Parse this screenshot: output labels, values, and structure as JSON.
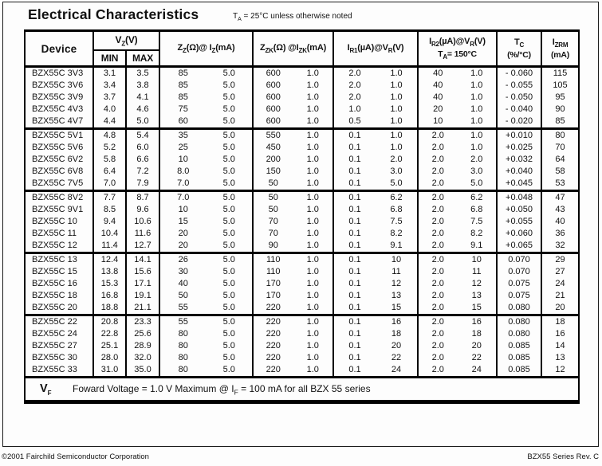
{
  "page": {
    "title": "Electrical Characteristics",
    "title_note": {
      "sym": "T",
      "sub": "A",
      "rest": " = 25°C unless otherwise noted"
    }
  },
  "table": {
    "headers": {
      "device": "Device",
      "vz": {
        "sym": "V",
        "sub": "Z",
        "rest": "(V)"
      },
      "min": "MIN",
      "max": "MAX",
      "zz": {
        "sym": "Z",
        "sub": "Z",
        "mid": "(Ω)@ I",
        "sub2": "Z",
        "rest": "(mA)"
      },
      "zzk": {
        "sym": "Z",
        "sub": "ZK",
        "mid": "(Ω) @I",
        "sub2": "ZK",
        "rest": "(mA)"
      },
      "ir1": {
        "sym": "I",
        "sub": "R1",
        "mid": "(µA)@V",
        "sub2": "R",
        "rest": "(V)"
      },
      "ir2": {
        "sym": "I",
        "sub": "R2",
        "mid": "(µA)@V",
        "sub2": "R",
        "rest": "(V)",
        "line2_sym": "T",
        "line2_sub": "A",
        "line2_rest": "= 150°C"
      },
      "tc": {
        "sym": "T",
        "sub": "C",
        "line2": "(%/°C)"
      },
      "izrm": {
        "sym": "I",
        "sub": "ZRM",
        "line2": "(mA)"
      }
    },
    "groups": [
      [
        {
          "device": "BZX55C 3V3",
          "vz_min": "3.1",
          "vz_max": "3.5",
          "zz": "85",
          "iz": "5.0",
          "zzk": "600",
          "izk": "1.0",
          "ir1": "2.0",
          "vr1": "1.0",
          "ir2": "40",
          "vr2": "1.0",
          "tc": "- 0.060",
          "izrm": "115"
        },
        {
          "device": "BZX55C 3V6",
          "vz_min": "3.4",
          "vz_max": "3.8",
          "zz": "85",
          "iz": "5.0",
          "zzk": "600",
          "izk": "1.0",
          "ir1": "2.0",
          "vr1": "1.0",
          "ir2": "40",
          "vr2": "1.0",
          "tc": "- 0.055",
          "izrm": "105"
        },
        {
          "device": "BZX55C 3V9",
          "vz_min": "3.7",
          "vz_max": "4.1",
          "zz": "85",
          "iz": "5.0",
          "zzk": "600",
          "izk": "1.0",
          "ir1": "2.0",
          "vr1": "1.0",
          "ir2": "40",
          "vr2": "1.0",
          "tc": "- 0.050",
          "izrm": "95"
        },
        {
          "device": "BZX55C 4V3",
          "vz_min": "4.0",
          "vz_max": "4.6",
          "zz": "75",
          "iz": "5.0",
          "zzk": "600",
          "izk": "1.0",
          "ir1": "1.0",
          "vr1": "1.0",
          "ir2": "20",
          "vr2": "1.0",
          "tc": "- 0.040",
          "izrm": "90"
        },
        {
          "device": "BZX55C 4V7",
          "vz_min": "4.4",
          "vz_max": "5.0",
          "zz": "60",
          "iz": "5.0",
          "zzk": "600",
          "izk": "1.0",
          "ir1": "0.5",
          "vr1": "1.0",
          "ir2": "10",
          "vr2": "1.0",
          "tc": "- 0.020",
          "izrm": "85"
        }
      ],
      [
        {
          "device": "BZX55C 5V1",
          "vz_min": "4.8",
          "vz_max": "5.4",
          "zz": "35",
          "iz": "5.0",
          "zzk": "550",
          "izk": "1.0",
          "ir1": "0.1",
          "vr1": "1.0",
          "ir2": "2.0",
          "vr2": "1.0",
          "tc": "+0.010",
          "izrm": "80"
        },
        {
          "device": "BZX55C 5V6",
          "vz_min": "5.2",
          "vz_max": "6.0",
          "zz": "25",
          "iz": "5.0",
          "zzk": "450",
          "izk": "1.0",
          "ir1": "0.1",
          "vr1": "1.0",
          "ir2": "2.0",
          "vr2": "1.0",
          "tc": "+0.025",
          "izrm": "70"
        },
        {
          "device": "BZX55C 6V2",
          "vz_min": "5.8",
          "vz_max": "6.6",
          "zz": "10",
          "iz": "5.0",
          "zzk": "200",
          "izk": "1.0",
          "ir1": "0.1",
          "vr1": "2.0",
          "ir2": "2.0",
          "vr2": "2.0",
          "tc": "+0.032",
          "izrm": "64"
        },
        {
          "device": "BZX55C 6V8",
          "vz_min": "6.4",
          "vz_max": "7.2",
          "zz": "8.0",
          "iz": "5.0",
          "zzk": "150",
          "izk": "1.0",
          "ir1": "0.1",
          "vr1": "3.0",
          "ir2": "2.0",
          "vr2": "3.0",
          "tc": "+0.040",
          "izrm": "58"
        },
        {
          "device": "BZX55C 7V5",
          "vz_min": "7.0",
          "vz_max": "7.9",
          "zz": "7.0",
          "iz": "5.0",
          "zzk": "50",
          "izk": "1.0",
          "ir1": "0.1",
          "vr1": "5.0",
          "ir2": "2.0",
          "vr2": "5.0",
          "tc": "+0.045",
          "izrm": "53"
        }
      ],
      [
        {
          "device": "BZX55C 8V2",
          "vz_min": "7.7",
          "vz_max": "8.7",
          "zz": "7.0",
          "iz": "5.0",
          "zzk": "50",
          "izk": "1.0",
          "ir1": "0.1",
          "vr1": "6.2",
          "ir2": "2.0",
          "vr2": "6.2",
          "tc": "+0.048",
          "izrm": "47"
        },
        {
          "device": "BZX55C 9V1",
          "vz_min": "8.5",
          "vz_max": "9.6",
          "zz": "10",
          "iz": "5.0",
          "zzk": "50",
          "izk": "1.0",
          "ir1": "0.1",
          "vr1": "6.8",
          "ir2": "2.0",
          "vr2": "6.8",
          "tc": "+0.050",
          "izrm": "43"
        },
        {
          "device": "BZX55C 10",
          "vz_min": "9.4",
          "vz_max": "10.6",
          "zz": "15",
          "iz": "5.0",
          "zzk": "70",
          "izk": "1.0",
          "ir1": "0.1",
          "vr1": "7.5",
          "ir2": "2.0",
          "vr2": "7.5",
          "tc": "+0.055",
          "izrm": "40"
        },
        {
          "device": "BZX55C 11",
          "vz_min": "10.4",
          "vz_max": "11.6",
          "zz": "20",
          "iz": "5.0",
          "zzk": "70",
          "izk": "1.0",
          "ir1": "0.1",
          "vr1": "8.2",
          "ir2": "2.0",
          "vr2": "8.2",
          "tc": "+0.060",
          "izrm": "36"
        },
        {
          "device": "BZX55C 12",
          "vz_min": "11.4",
          "vz_max": "12.7",
          "zz": "20",
          "iz": "5.0",
          "zzk": "90",
          "izk": "1.0",
          "ir1": "0.1",
          "vr1": "9.1",
          "ir2": "2.0",
          "vr2": "9.1",
          "tc": "+0.065",
          "izrm": "32"
        }
      ],
      [
        {
          "device": "BZX55C 13",
          "vz_min": "12.4",
          "vz_max": "14.1",
          "zz": "26",
          "iz": "5.0",
          "zzk": "110",
          "izk": "1.0",
          "ir1": "0.1",
          "vr1": "10",
          "ir2": "2.0",
          "vr2": "10",
          "tc": "0.070",
          "izrm": "29"
        },
        {
          "device": "BZX55C 15",
          "vz_min": "13.8",
          "vz_max": "15.6",
          "zz": "30",
          "iz": "5.0",
          "zzk": "110",
          "izk": "1.0",
          "ir1": "0.1",
          "vr1": "11",
          "ir2": "2.0",
          "vr2": "11",
          "tc": "0.070",
          "izrm": "27"
        },
        {
          "device": "BZX55C 16",
          "vz_min": "15.3",
          "vz_max": "17.1",
          "zz": "40",
          "iz": "5.0",
          "zzk": "170",
          "izk": "1.0",
          "ir1": "0.1",
          "vr1": "12",
          "ir2": "2.0",
          "vr2": "12",
          "tc": "0.075",
          "izrm": "24"
        },
        {
          "device": "BZX55C 18",
          "vz_min": "16.8",
          "vz_max": "19.1",
          "zz": "50",
          "iz": "5.0",
          "zzk": "170",
          "izk": "1.0",
          "ir1": "0.1",
          "vr1": "13",
          "ir2": "2.0",
          "vr2": "13",
          "tc": "0.075",
          "izrm": "21"
        },
        {
          "device": "BZX55C 20",
          "vz_min": "18.8",
          "vz_max": "21.1",
          "zz": "55",
          "iz": "5.0",
          "zzk": "220",
          "izk": "1.0",
          "ir1": "0.1",
          "vr1": "15",
          "ir2": "2.0",
          "vr2": "15",
          "tc": "0.080",
          "izrm": "20"
        }
      ],
      [
        {
          "device": "BZX55C 22",
          "vz_min": "20.8",
          "vz_max": "23.3",
          "zz": "55",
          "iz": "5.0",
          "zzk": "220",
          "izk": "1.0",
          "ir1": "0.1",
          "vr1": "16",
          "ir2": "2.0",
          "vr2": "16",
          "tc": "0.080",
          "izrm": "18"
        },
        {
          "device": "BZX55C 24",
          "vz_min": "22.8",
          "vz_max": "25.6",
          "zz": "80",
          "iz": "5.0",
          "zzk": "220",
          "izk": "1.0",
          "ir1": "0.1",
          "vr1": "18",
          "ir2": "2.0",
          "vr2": "18",
          "tc": "0.080",
          "izrm": "16"
        },
        {
          "device": "BZX55C 27",
          "vz_min": "25.1",
          "vz_max": "28.9",
          "zz": "80",
          "iz": "5.0",
          "zzk": "220",
          "izk": "1.0",
          "ir1": "0.1",
          "vr1": "20",
          "ir2": "2.0",
          "vr2": "20",
          "tc": "0.085",
          "izrm": "14"
        },
        {
          "device": "BZX55C 30",
          "vz_min": "28.0",
          "vz_max": "32.0",
          "zz": "80",
          "iz": "5.0",
          "zzk": "220",
          "izk": "1.0",
          "ir1": "0.1",
          "vr1": "22",
          "ir2": "2.0",
          "vr2": "22",
          "tc": "0.085",
          "izrm": "13"
        },
        {
          "device": "BZX55C 33",
          "vz_min": "31.0",
          "vz_max": "35.0",
          "zz": "80",
          "iz": "5.0",
          "zzk": "220",
          "izk": "1.0",
          "ir1": "0.1",
          "vr1": "24",
          "ir2": "2.0",
          "vr2": "24",
          "tc": "0.085",
          "izrm": "12"
        }
      ]
    ],
    "vf_row": {
      "sym": "V",
      "sub": "F",
      "text1": "Foward Voltage = 1.0 V Maximum @ I",
      "sub2": "F",
      "text2": "  = 100 mA for all BZX 55   series"
    }
  },
  "footer": {
    "copyright": "©2001 Fairchild Semiconductor Corporation",
    "revision": "BZX55 Series Rev. C"
  }
}
